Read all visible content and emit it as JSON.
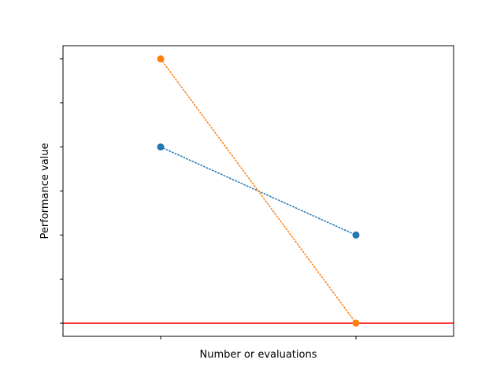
{
  "chart_data": {
    "type": "line",
    "title": "",
    "xlabel": "Number or evaluations",
    "ylabel": "Performance value",
    "xlim": [
      -0.5,
      1.5
    ],
    "ylim": [
      -0.15,
      3.15
    ],
    "x_ticks": [
      0,
      1
    ],
    "y_ticks": [
      0,
      0.5,
      1,
      1.5,
      2,
      2.5,
      3
    ],
    "tick_labels_shown": false,
    "grid": false,
    "legend": "none",
    "series": [
      {
        "color": "#1f77b4",
        "line_style": "dotted",
        "marker": "circle",
        "x": [
          0,
          1
        ],
        "y": [
          2.0,
          1.0
        ]
      },
      {
        "color": "#ff7f0e",
        "line_style": "dotted",
        "marker": "circle",
        "x": [
          0,
          1
        ],
        "y": [
          3.0,
          0.0
        ]
      }
    ],
    "reference_line": {
      "orientation": "horizontal",
      "y": 0,
      "color": "#ff0000",
      "line_style": "solid"
    }
  }
}
